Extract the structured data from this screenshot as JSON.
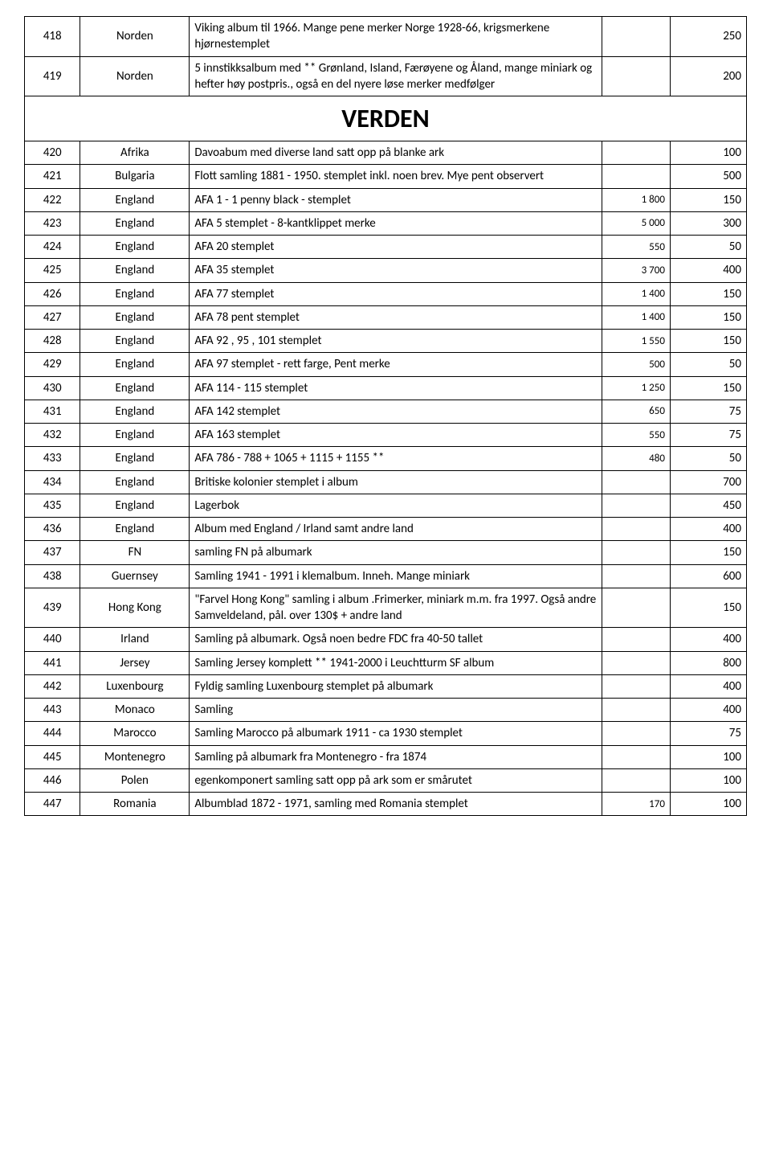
{
  "section_header": "VERDEN",
  "rows": [
    {
      "num": "418",
      "country": "Norden",
      "desc": "Viking album til 1966. Mange pene merker Norge 1928-66, krigsmerkene hjørnestemplet",
      "v1": "",
      "v2": "250"
    },
    {
      "num": "419",
      "country": "Norden",
      "desc": "5 innstikksalbum med ** Grønland, Island, Færøyene og Åland, mange miniark og hefter høy postpris., også en del nyere løse merker medfølger",
      "v1": "",
      "v2": "200"
    },
    {
      "header": true
    },
    {
      "num": "420",
      "country": "Afrika",
      "desc": "Davoabum med diverse land satt opp på blanke ark",
      "v1": "",
      "v2": "100"
    },
    {
      "num": "421",
      "country": "Bulgaria",
      "desc": "Flott samling 1881 - 1950. stemplet inkl. noen brev. Mye pent observert",
      "v1": "",
      "v2": "500"
    },
    {
      "num": "422",
      "country": "England",
      "desc": "AFA 1 - 1 penny black  - stemplet",
      "v1": "1 800",
      "v2": "150"
    },
    {
      "num": "423",
      "country": "England",
      "desc": "AFA 5 stemplet - 8-kantklippet merke",
      "v1": "5 000",
      "v2": "300"
    },
    {
      "num": "424",
      "country": "England",
      "desc": "AFA 20 stemplet",
      "v1": "550",
      "v2": "50"
    },
    {
      "num": "425",
      "country": "England",
      "desc": "AFA 35 stemplet",
      "v1": "3 700",
      "v2": "400"
    },
    {
      "num": "426",
      "country": "England",
      "desc": "AFA 77 stemplet",
      "v1": "1 400",
      "v2": "150"
    },
    {
      "num": "427",
      "country": "England",
      "desc": "AFA 78 pent stemplet",
      "v1": "1 400",
      "v2": "150"
    },
    {
      "num": "428",
      "country": "England",
      "desc": "AFA 92 , 95 , 101  stemplet",
      "v1": "1 550",
      "v2": "150"
    },
    {
      "num": "429",
      "country": "England",
      "desc": "AFA 97 stemplet - rett farge,  Pent merke",
      "v1": "500",
      "v2": "50"
    },
    {
      "num": "430",
      "country": "England",
      "desc": "AFA 114 - 115 stemplet",
      "v1": "1 250",
      "v2": "150"
    },
    {
      "num": "431",
      "country": "England",
      "desc": "AFA 142 stemplet",
      "v1": "650",
      "v2": "75"
    },
    {
      "num": "432",
      "country": "England",
      "desc": "AFA 163 stemplet",
      "v1": "550",
      "v2": "75"
    },
    {
      "num": "433",
      "country": "England",
      "desc": "AFA 786 - 788 + 1065 + 1115 + 1155   **",
      "v1": "480",
      "v2": "50"
    },
    {
      "num": "434",
      "country": "England",
      "desc": "Britiske kolonier stemplet i album",
      "v1": "",
      "v2": "700"
    },
    {
      "num": "435",
      "country": "England",
      "desc": "Lagerbok",
      "v1": "",
      "v2": "450"
    },
    {
      "num": "436",
      "country": "England",
      "desc": "Album med England / Irland samt andre land",
      "v1": "",
      "v2": "400"
    },
    {
      "num": "437",
      "country": "FN",
      "desc": "samling FN på albumark",
      "v1": "",
      "v2": "150"
    },
    {
      "num": "438",
      "country": "Guernsey",
      "desc": "Samling 1941 - 1991 i klemalbum.  Inneh. Mange miniark",
      "v1": "",
      "v2": "600"
    },
    {
      "num": "439",
      "country": "Hong Kong",
      "desc": "\"Farvel Hong Kong\" samling i album .Frimerker, miniark m.m. fra 1997. Også andre Samveldeland, pål. over 130$ + andre land",
      "v1": "",
      "v2": "150"
    },
    {
      "num": "440",
      "country": "Irland",
      "desc": "Samling på albumark.  Også noen bedre FDC fra 40-50 tallet",
      "v1": "",
      "v2": "400"
    },
    {
      "num": "441",
      "country": "Jersey",
      "desc": "Samling Jersey komplett  ** 1941-2000 i Leuchtturm SF album",
      "v1": "",
      "v2": "800"
    },
    {
      "num": "442",
      "country": "Luxenbourg",
      "desc": "Fyldig samling Luxenbourg stemplet på albumark",
      "v1": "",
      "v2": "400"
    },
    {
      "num": "443",
      "country": "Monaco",
      "desc": "Samling",
      "v1": "",
      "v2": "400"
    },
    {
      "num": "444",
      "country": "Marocco",
      "desc": "Samling Marocco på albumark 1911 - ca 1930 stemplet",
      "v1": "",
      "v2": "75"
    },
    {
      "num": "445",
      "country": "Montenegro",
      "desc": "Samling på albumark fra Montenegro - fra 1874",
      "v1": "",
      "v2": "100"
    },
    {
      "num": "446",
      "country": "Polen",
      "desc": "egenkomponert samling satt opp på ark som er smårutet",
      "v1": "",
      "v2": "100"
    },
    {
      "num": "447",
      "country": "Romania",
      "desc": "Albumblad 1872 - 1971, samling med Romania stemplet",
      "v1": "170",
      "v2": "100"
    }
  ]
}
